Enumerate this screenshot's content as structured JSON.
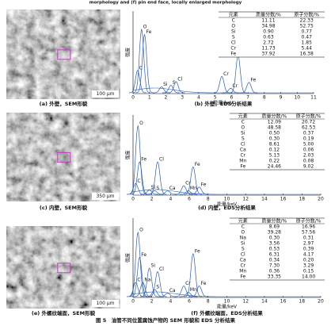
{
  "header": {
    "title": "morphology and (f) pin end face, locally enlarged morphology"
  },
  "sem": [
    {
      "caption": "(a) 外壁，SEM形貌",
      "scale_bar": "100 μm"
    },
    {
      "caption": "(c) 内壁，SEM形貌",
      "scale_bar": "350 μm"
    },
    {
      "caption": "(e) 外螺纹端面，SEM形貌",
      "scale_bar": "100 μm"
    }
  ],
  "eds": [
    {
      "caption": "(b) 外壁，EDS分析结果",
      "y_label": "强度",
      "x_label": "能量/keV",
      "xlim": [
        0,
        11
      ],
      "xticks": [
        0,
        1,
        2,
        3,
        4,
        5,
        6,
        7,
        8,
        9,
        10,
        11
      ],
      "peaks": [
        {
          "label": "C",
          "kev": 0.28,
          "height": 0.3
        },
        {
          "label": "O",
          "kev": 0.52,
          "height": 0.85
        },
        {
          "label": "Fe",
          "kev": 0.7,
          "height": 0.78
        },
        {
          "label": "Si",
          "kev": 1.74,
          "height": 0.08
        },
        {
          "label": "S",
          "kev": 2.31,
          "height": 0.1
        },
        {
          "label": "Cl",
          "kev": 2.62,
          "height": 0.15
        },
        {
          "label": "Cr",
          "kev": 5.41,
          "height": 0.22
        },
        {
          "label": "Cr",
          "kev": 5.95,
          "height": 0.06
        },
        {
          "label": "Fe",
          "kev": 6.4,
          "height": 0.5
        },
        {
          "label": "Fe",
          "kev": 7.06,
          "height": 0.14
        }
      ],
      "table": {
        "header": [
          "元素",
          "质量分数/%",
          "原子分数/%"
        ],
        "rows": [
          [
            "C",
            "11.11",
            "22.33"
          ],
          [
            "O",
            "34.98",
            "52.75"
          ],
          [
            "Si",
            "0.90",
            "0.77"
          ],
          [
            "S",
            "0.63",
            "0.47"
          ],
          [
            "Cl",
            "2.72",
            "1.85"
          ],
          [
            "Cr",
            "11.73",
            "5.44"
          ],
          [
            "Fe",
            "37.92",
            "16.38"
          ]
        ]
      }
    },
    {
      "caption": "(d) 内壁，EDS分析结果",
      "y_label": "强度",
      "x_label": "能量/keV",
      "xlim": [
        0,
        20
      ],
      "xticks": [
        0,
        2,
        4,
        6,
        8,
        10,
        12,
        14,
        16,
        18,
        20
      ],
      "peaks": [
        {
          "label": "C",
          "kev": 0.28,
          "height": 0.15
        },
        {
          "label": "O",
          "kev": 0.52,
          "height": 0.95
        },
        {
          "label": "Fe",
          "kev": 0.7,
          "height": 0.45
        },
        {
          "label": "Si",
          "kev": 1.74,
          "height": 0.06
        },
        {
          "label": "S",
          "kev": 2.31,
          "height": 0.05
        },
        {
          "label": "Cl",
          "kev": 2.62,
          "height": 0.45
        },
        {
          "label": "Ca",
          "kev": 3.69,
          "height": 0.05
        },
        {
          "label": "Cr",
          "kev": 5.41,
          "height": 0.12
        },
        {
          "label": "Mn",
          "kev": 5.9,
          "height": 0.05
        },
        {
          "label": "Fe",
          "kev": 6.4,
          "height": 0.38
        },
        {
          "label": "Fe",
          "kev": 7.06,
          "height": 0.1
        }
      ],
      "table": {
        "header": [
          "元素",
          "质量分数/%",
          "原子分数/%"
        ],
        "rows": [
          [
            "C",
            "12.09",
            "20.72"
          ],
          [
            "O",
            "48.58",
            "62.53"
          ],
          [
            "Si",
            "0.50",
            "0.37"
          ],
          [
            "S",
            "0.30",
            "0.19"
          ],
          [
            "Cl",
            "8.61",
            "5.00"
          ],
          [
            "Ca",
            "0.12",
            "0.06"
          ],
          [
            "Cr",
            "5.13",
            "2.03"
          ],
          [
            "Mn",
            "0.22",
            "0.08"
          ],
          [
            "Fe",
            "24.46",
            "9.02"
          ]
        ]
      }
    },
    {
      "caption": "(f) 外螺纹端面，EDS分析结果",
      "y_label": "强度",
      "x_label": "能量/keV",
      "xlim": [
        0,
        20
      ],
      "xticks": [
        0,
        2,
        4,
        6,
        8,
        10,
        12,
        14,
        16,
        18,
        20
      ],
      "peaks": [
        {
          "label": "C",
          "kev": 0.28,
          "height": 0.2
        },
        {
          "label": "O",
          "kev": 0.52,
          "height": 0.9
        },
        {
          "label": "Fe",
          "kev": 0.7,
          "height": 0.55
        },
        {
          "label": "Na",
          "kev": 1.04,
          "height": 0.2
        },
        {
          "label": "Si",
          "kev": 1.74,
          "height": 0.4
        },
        {
          "label": "S",
          "kev": 2.31,
          "height": 0.1
        },
        {
          "label": "Cl",
          "kev": 2.62,
          "height": 0.35
        },
        {
          "label": "Ca",
          "kev": 3.69,
          "height": 0.05
        },
        {
          "label": "Cr",
          "kev": 5.41,
          "height": 0.15
        },
        {
          "label": "Mn",
          "kev": 5.9,
          "height": 0.06
        },
        {
          "label": "Fe",
          "kev": 6.4,
          "height": 0.6
        },
        {
          "label": "Fe",
          "kev": 7.06,
          "height": 0.15
        }
      ],
      "table": {
        "header": [
          "元素",
          "质量分数/%",
          "原子分数/%"
        ],
        "rows": [
          [
            "C",
            "8.69",
            "16.96"
          ],
          [
            "O",
            "39.28",
            "57.56"
          ],
          [
            "Na",
            "0.30",
            "0.31"
          ],
          [
            "Si",
            "3.56",
            "2.97"
          ],
          [
            "S",
            "0.53",
            "0.39"
          ],
          [
            "Cl",
            "6.31",
            "4.17"
          ],
          [
            "Ca",
            "0.34",
            "0.20"
          ],
          [
            "Cr",
            "7.30",
            "3.29"
          ],
          [
            "Mn",
            "0.36",
            "0.15"
          ],
          [
            "Fe",
            "33.35",
            "14.00"
          ]
        ]
      }
    }
  ],
  "figure_caption": "图 5　油管不同位置腐蚀产物的 SEM 形貌和 EDS 分析结果"
}
